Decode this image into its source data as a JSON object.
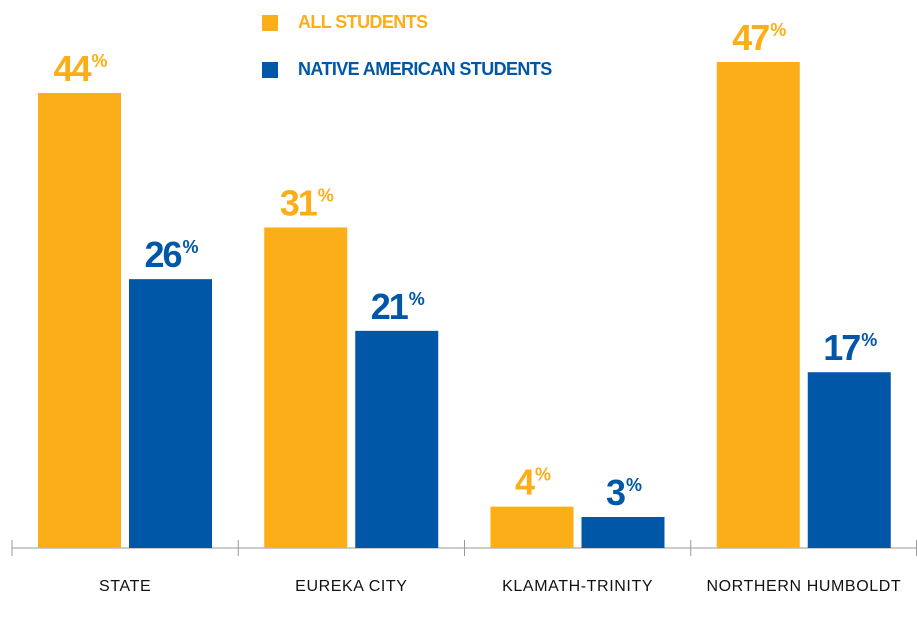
{
  "chart_data": {
    "type": "bar",
    "categories": [
      "STATE",
      "EUREKA CITY",
      "KLAMATH-TRINITY",
      "NORTHERN HUMBOLDT"
    ],
    "series": [
      {
        "name": "ALL STUDENTS",
        "color": "#fbae17",
        "values": [
          44,
          31,
          4,
          47
        ],
        "value_labels": [
          "44%",
          "31%",
          "4%",
          "47%"
        ]
      },
      {
        "name": "NATIVE AMERICAN STUDENTS",
        "color": "#0057a8",
        "values": [
          26,
          21,
          3,
          17
        ],
        "value_labels": [
          "26%",
          "21%",
          "3%",
          "17%"
        ]
      }
    ]
  }
}
